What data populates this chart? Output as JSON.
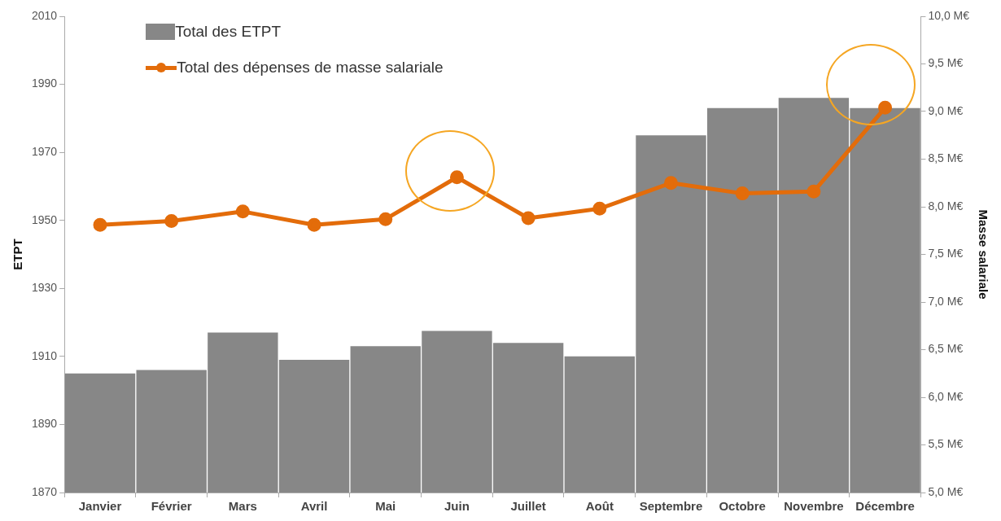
{
  "chart_data": {
    "type": "bar",
    "xlabel": null,
    "ylabel": "ETPT",
    "y2label": "Masse salariale",
    "categories": [
      "Janvier",
      "Février",
      "Mars",
      "Avril",
      "Mai",
      "Juin",
      "Juillet",
      "Août",
      "Septembre",
      "Octobre",
      "Novembre",
      "Décembre"
    ],
    "series": [
      {
        "name": "Total des ETPT",
        "color": "#878787",
        "values": [
          1905,
          1906,
          1917,
          1909,
          1913,
          1917.5,
          1914,
          1910,
          1975,
          1983,
          1986,
          1983
        ]
      },
      {
        "name": "Total des dépenses de masse salariale",
        "type": "line",
        "axis": "y2",
        "color": "#e36c0a",
        "values": [
          7.81,
          7.85,
          7.95,
          7.81,
          7.87,
          8.31,
          7.88,
          7.98,
          8.25,
          8.14,
          8.16,
          9.04
        ]
      }
    ],
    "ylim": [
      1870,
      2010
    ],
    "yticks": [
      1870,
      1890,
      1910,
      1930,
      1950,
      1970,
      1990,
      2010
    ],
    "y2lim": [
      5,
      10
    ],
    "y2ticks": [
      {
        "value": 5,
        "label": "5,0 M€"
      },
      {
        "value": 5.5,
        "label": "5,5 M€"
      },
      {
        "value": 6,
        "label": "6,0 M€"
      },
      {
        "value": 6.5,
        "label": "6,5 M€"
      },
      {
        "value": 7,
        "label": "7,0 M€"
      },
      {
        "value": 7.5,
        "label": "7,5 M€"
      },
      {
        "value": 8,
        "label": "8,0 M€"
      },
      {
        "value": 8.5,
        "label": "8,5 M€"
      },
      {
        "value": 9,
        "label": "9,0 M€"
      },
      {
        "value": 9.5,
        "label": "9,5 M€"
      },
      {
        "value": 10,
        "label": "10,0 M€"
      }
    ],
    "grid": false,
    "legend": "top left",
    "marker": "circle",
    "line_style": "solid"
  }
}
